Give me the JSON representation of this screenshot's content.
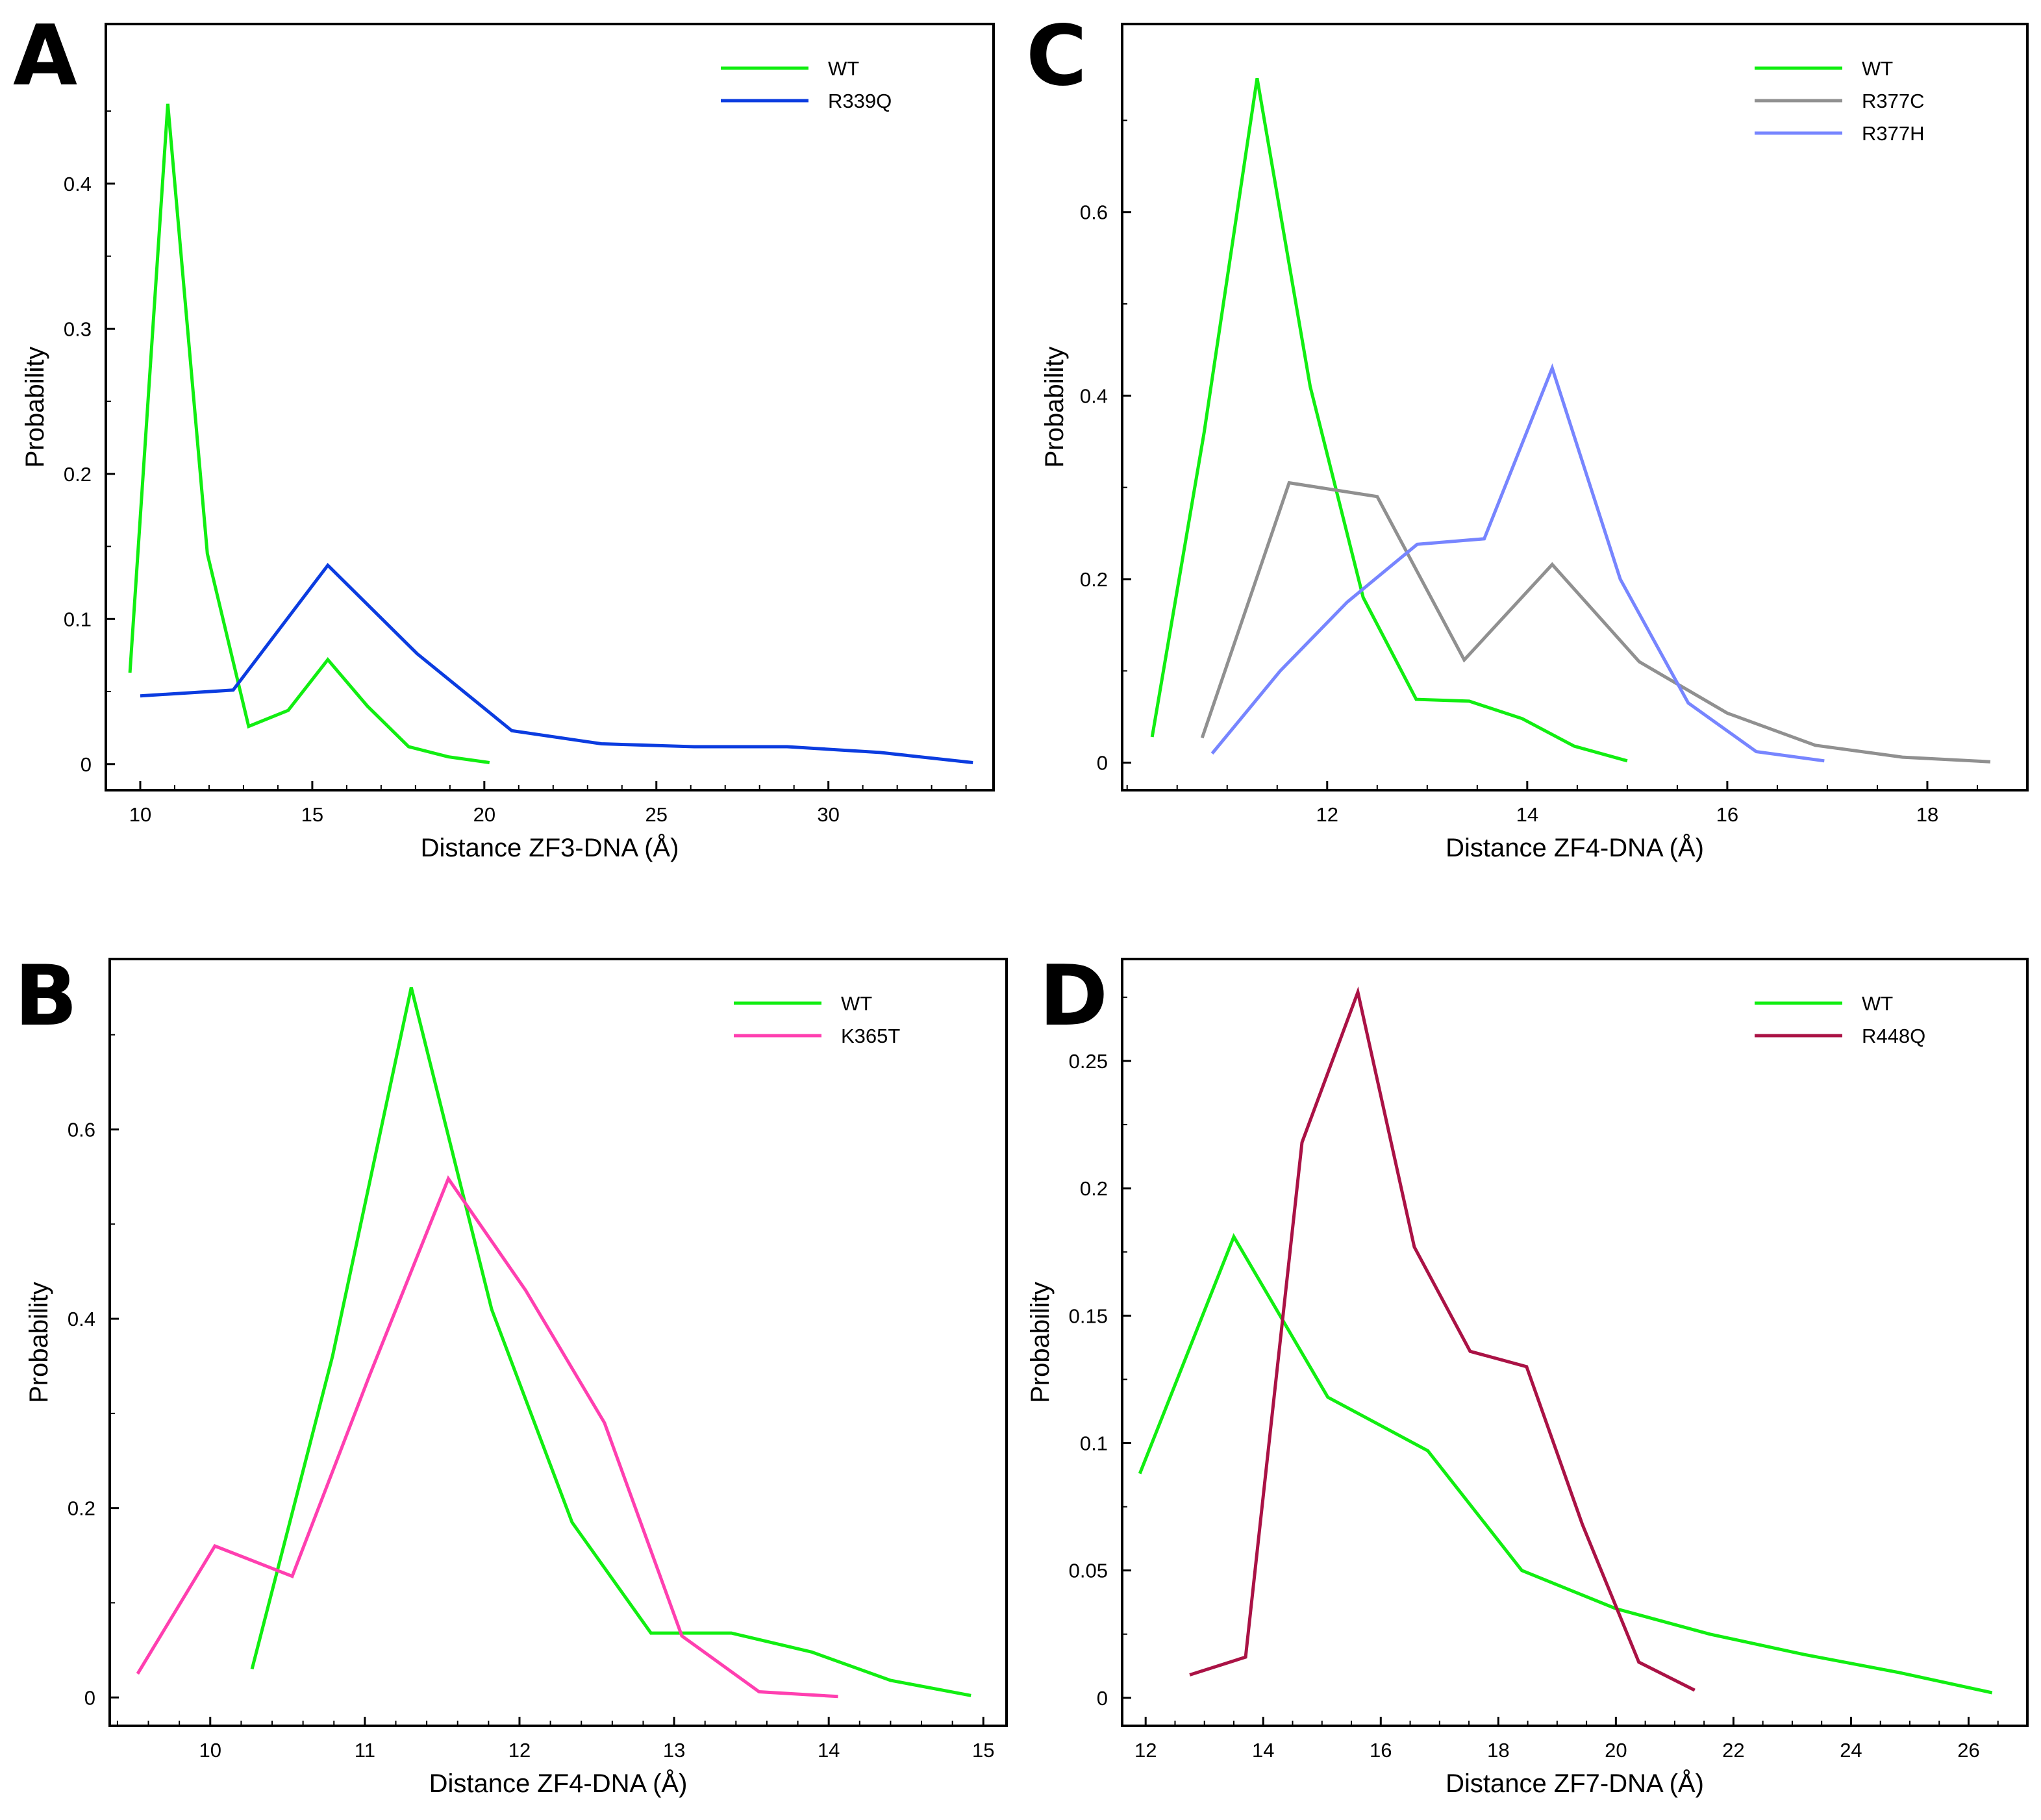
{
  "chart_data": [
    {
      "panel": "A",
      "type": "line",
      "xlabel": "Distance ZF3-DNA (Å)",
      "ylabel": "Probability",
      "xlim": [
        9.0,
        34.8
      ],
      "ylim": [
        -0.018,
        0.51
      ],
      "xticks": [
        10,
        15,
        20,
        25,
        30
      ],
      "xtick_labels": [
        "10",
        "15",
        "20",
        "25",
        "30"
      ],
      "yticks": [
        0,
        0.1,
        0.2,
        0.3,
        0.4
      ],
      "ytick_labels": [
        "0",
        "0.1",
        "0.2",
        "0.3",
        "0.4"
      ],
      "legend_placement": "top-right",
      "series": [
        {
          "name": "WT",
          "color": "#11ee11",
          "x": [
            9.7,
            10.8,
            11.95,
            13.15,
            14.3,
            15.45,
            16.6,
            17.8,
            18.95,
            20.15
          ],
          "y": [
            0.063,
            0.455,
            0.145,
            0.026,
            0.037,
            0.072,
            0.04,
            0.012,
            0.005,
            0.001
          ]
        },
        {
          "name": "R339Q",
          "color": "#0b3ce0",
          "x": [
            10.0,
            12.7,
            15.45,
            18.05,
            20.8,
            23.4,
            26.1,
            28.8,
            31.5,
            34.2
          ],
          "y": [
            0.047,
            0.051,
            0.137,
            0.076,
            0.023,
            0.014,
            0.012,
            0.012,
            0.008,
            0.001
          ]
        }
      ]
    },
    {
      "panel": "C",
      "type": "line",
      "xlabel": "Distance ZF4-DNA (Å)",
      "ylabel": "Probability",
      "xlim": [
        9.95,
        19.0
      ],
      "ylim": [
        -0.03,
        0.805
      ],
      "xticks": [
        12,
        14,
        16,
        18
      ],
      "xtick_labels": [
        "12",
        "14",
        "16",
        "18"
      ],
      "yticks": [
        0,
        0.2,
        0.4,
        0.6
      ],
      "ytick_labels": [
        "0",
        "0.2",
        "0.4",
        "0.6"
      ],
      "legend_placement": "top-right",
      "series": [
        {
          "name": "WT",
          "color": "#11ee11",
          "x": [
            10.25,
            10.77,
            11.3,
            11.83,
            12.36,
            12.89,
            13.42,
            13.95,
            14.47,
            15.0
          ],
          "y": [
            0.028,
            0.36,
            0.746,
            0.41,
            0.18,
            0.069,
            0.067,
            0.048,
            0.018,
            0.002
          ]
        },
        {
          "name": "R377C",
          "color": "#909090",
          "x": [
            10.75,
            11.62,
            12.5,
            13.37,
            14.25,
            15.12,
            16.0,
            16.88,
            17.75,
            18.63
          ],
          "y": [
            0.027,
            0.305,
            0.29,
            0.112,
            0.216,
            0.11,
            0.054,
            0.019,
            0.006,
            0.001
          ]
        },
        {
          "name": "R377H",
          "color": "#7785ff",
          "x": [
            10.85,
            11.53,
            12.2,
            12.9,
            13.57,
            14.25,
            14.93,
            15.61,
            16.29,
            16.97
          ],
          "y": [
            0.01,
            0.1,
            0.175,
            0.238,
            0.244,
            0.43,
            0.2,
            0.065,
            0.012,
            0.002
          ]
        }
      ]
    },
    {
      "panel": "B",
      "type": "line",
      "xlabel": "Distance ZF4-DNA (Å)",
      "ylabel": "Probability",
      "xlim": [
        9.35,
        15.15
      ],
      "ylim": [
        -0.03,
        0.78
      ],
      "xticks": [
        10,
        11,
        12,
        13,
        14,
        15
      ],
      "xtick_labels": [
        "10",
        "11",
        "12",
        "13",
        "14",
        "15"
      ],
      "yticks": [
        0,
        0.2,
        0.4,
        0.6
      ],
      "ytick_labels": [
        "0",
        "0.2",
        "0.4",
        "0.6"
      ],
      "legend_placement": "top-right",
      "series": [
        {
          "name": "WT",
          "color": "#11ee11",
          "x": [
            10.27,
            10.79,
            11.3,
            11.82,
            12.34,
            12.85,
            13.37,
            13.89,
            14.4,
            14.92
          ],
          "y": [
            0.03,
            0.36,
            0.75,
            0.41,
            0.185,
            0.068,
            0.068,
            0.048,
            0.018,
            0.002
          ]
        },
        {
          "name": "K365T",
          "color": "#ff3fb0",
          "x": [
            9.53,
            10.03,
            10.53,
            11.03,
            11.54,
            12.04,
            12.55,
            13.05,
            13.55,
            14.06
          ],
          "y": [
            0.025,
            0.16,
            0.128,
            0.34,
            0.548,
            0.43,
            0.29,
            0.065,
            0.006,
            0.001
          ]
        }
      ]
    },
    {
      "panel": "D",
      "type": "line",
      "xlabel": "Distance ZF7-DNA (Å)",
      "ylabel": "Probability",
      "xlim": [
        11.6,
        27.0
      ],
      "ylim": [
        -0.011,
        0.29
      ],
      "xticks": [
        12,
        14,
        16,
        18,
        20,
        22,
        24,
        26
      ],
      "xtick_labels": [
        "12",
        "14",
        "16",
        "18",
        "20",
        "22",
        "24",
        "26"
      ],
      "yticks": [
        0,
        0.05,
        0.1,
        0.15,
        0.2,
        0.25
      ],
      "ytick_labels": [
        "0",
        "0.05",
        "0.1",
        "0.15",
        "0.2",
        "0.25"
      ],
      "legend_placement": "top-right",
      "series": [
        {
          "name": "WT",
          "color": "#11ee11",
          "x": [
            11.9,
            13.5,
            15.1,
            16.8,
            18.4,
            20.0,
            21.6,
            23.2,
            24.8,
            26.4
          ],
          "y": [
            0.088,
            0.181,
            0.118,
            0.097,
            0.05,
            0.035,
            0.025,
            0.017,
            0.01,
            0.002
          ]
        },
        {
          "name": "R448Q",
          "color": "#aa1245",
          "x": [
            12.75,
            13.7,
            14.66,
            15.61,
            16.57,
            17.52,
            18.48,
            19.43,
            20.39,
            21.34
          ],
          "y": [
            0.009,
            0.016,
            0.218,
            0.277,
            0.177,
            0.136,
            0.13,
            0.068,
            0.014,
            0.003
          ]
        }
      ]
    }
  ]
}
